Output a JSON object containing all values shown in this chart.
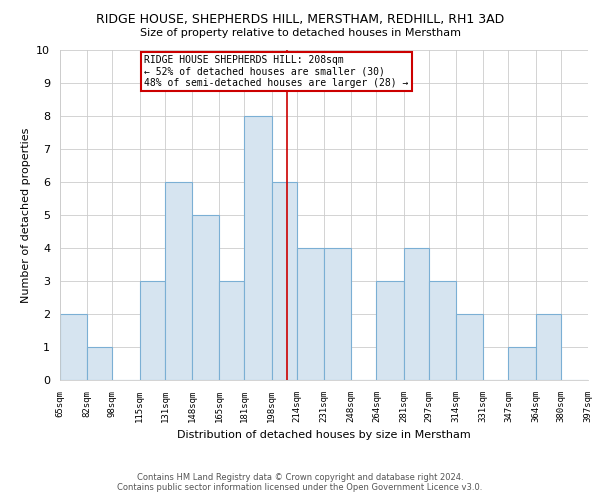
{
  "title": "RIDGE HOUSE, SHEPHERDS HILL, MERSTHAM, REDHILL, RH1 3AD",
  "subtitle": "Size of property relative to detached houses in Merstham",
  "xlabel": "Distribution of detached houses by size in Merstham",
  "ylabel": "Number of detached properties",
  "bar_color": "#d6e4f0",
  "bar_edgecolor": "#7bafd4",
  "annotation_text_line1": "RIDGE HOUSE SHEPHERDS HILL: 208sqm",
  "annotation_text_line2": "← 52% of detached houses are smaller (30)",
  "annotation_text_line3": "48% of semi-detached houses are larger (28) →",
  "annotation_box_facecolor": "#ffffff",
  "annotation_box_edgecolor": "#cc0000",
  "vline_color": "#cc0000",
  "footer_line1": "Contains HM Land Registry data © Crown copyright and database right 2024.",
  "footer_line2": "Contains public sector information licensed under the Open Government Licence v3.0.",
  "bins": [
    65,
    82,
    98,
    115,
    131,
    148,
    165,
    181,
    198,
    214,
    231,
    248,
    264,
    281,
    297,
    314,
    331,
    347,
    364,
    380,
    397
  ],
  "counts": [
    2,
    1,
    0,
    3,
    6,
    5,
    3,
    8,
    6,
    4,
    4,
    0,
    3,
    4,
    3,
    2,
    0,
    1,
    2,
    0
  ],
  "ylim": [
    0,
    10
  ],
  "vline_x": 208,
  "background_color": "#ffffff",
  "grid_color": "#cccccc",
  "title_fontsize": 9,
  "subtitle_fontsize": 8,
  "ylabel_fontsize": 8,
  "xlabel_fontsize": 8,
  "annot_fontsize": 7,
  "footer_fontsize": 6
}
